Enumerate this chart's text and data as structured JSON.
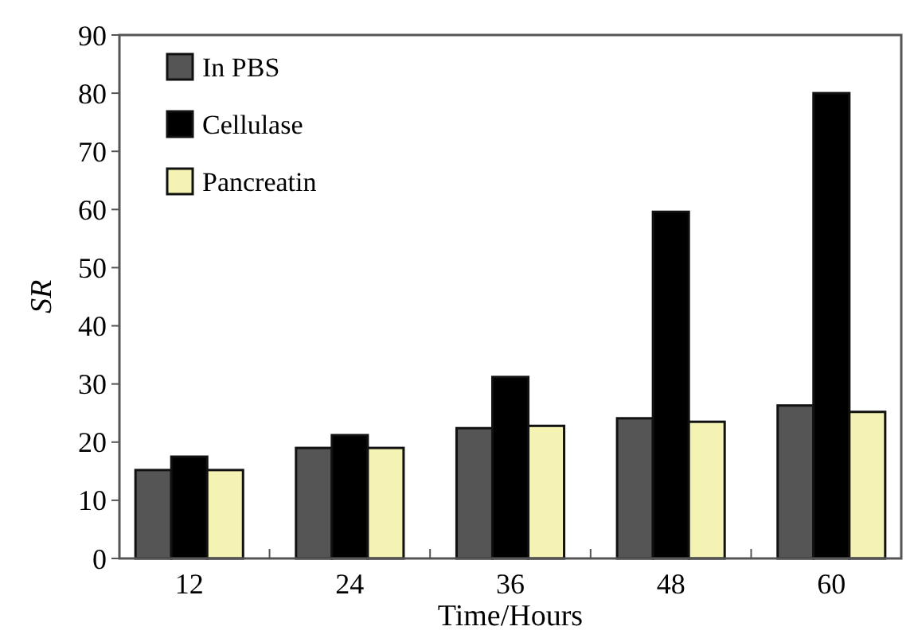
{
  "chart_data": {
    "type": "bar",
    "xlabel": "Time/Hours",
    "ylabel": "SR",
    "categories": [
      "12",
      "24",
      "36",
      "48",
      "60"
    ],
    "series": [
      {
        "name": "In PBS",
        "color": "#555555",
        "values": [
          15.2,
          19,
          22.4,
          24.1,
          26.3
        ]
      },
      {
        "name": "Cellulase",
        "color": "#000000",
        "values": [
          17.5,
          21.2,
          31.2,
          59.6,
          80
        ]
      },
      {
        "name": "Pancreatin",
        "color": "#f5f3b3",
        "values": [
          15.2,
          19,
          22.8,
          23.5,
          25.2
        ]
      }
    ],
    "ylim": [
      0,
      90
    ],
    "yticks": [
      0,
      10,
      20,
      30,
      40,
      50,
      60,
      70,
      80,
      90
    ],
    "grid": false,
    "legend": "top left"
  }
}
